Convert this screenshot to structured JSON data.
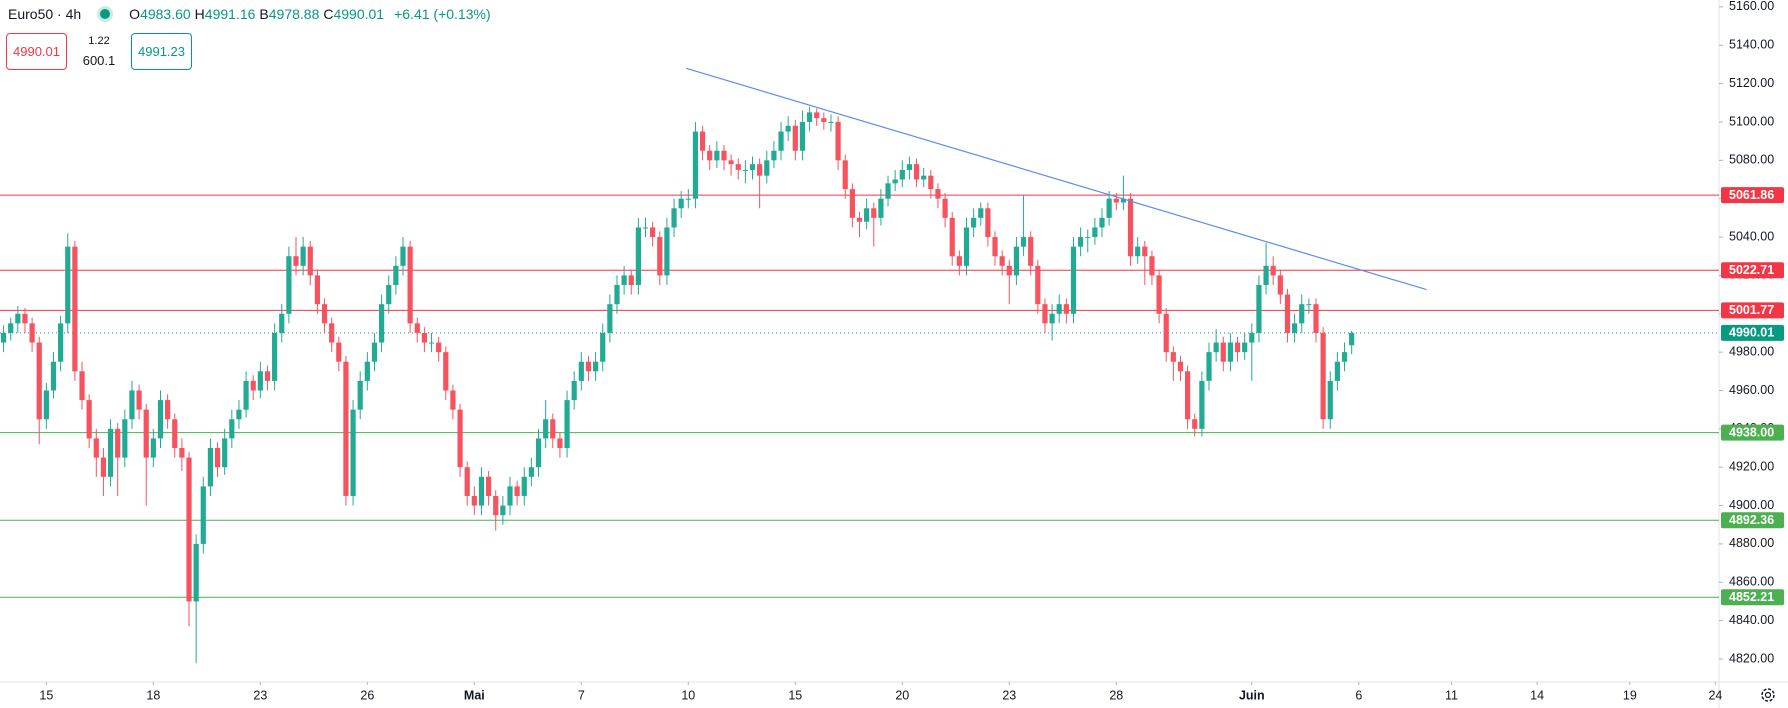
{
  "chart_data": {
    "type": "candlestick",
    "symbol": "Euro50 · 4h",
    "ohlc": [
      {
        "key": "O",
        "text": "4983.60"
      },
      {
        "key": "H",
        "text": "4991.16"
      },
      {
        "key": "B",
        "text": "4978.88"
      },
      {
        "key": "C",
        "text": "4990.01"
      }
    ],
    "change": "+6.41 (+0.13%)",
    "buttons": {
      "sell": "4990.01",
      "spread": "1.22",
      "volume": "600.1",
      "buy": "4991.23"
    },
    "up_color": "#22ab94",
    "down_color": "#f7525f",
    "candles": [
      [
        4985,
        4994,
        4980,
        4990
      ],
      [
        4990,
        4998,
        4986,
        4995
      ],
      [
        4995,
        5004,
        4990,
        5000
      ],
      [
        5000,
        5003,
        4990,
        4995
      ],
      [
        4995,
        4998,
        4980,
        4985
      ],
      [
        4985,
        4988,
        4932,
        4945
      ],
      [
        4945,
        4964,
        4940,
        4960
      ],
      [
        4960,
        4980,
        4956,
        4975
      ],
      [
        4975,
        4999,
        4970,
        4995
      ],
      [
        4995,
        5042,
        4990,
        5035
      ],
      [
        5035,
        5038,
        4965,
        4970
      ],
      [
        4970,
        4975,
        4950,
        4955
      ],
      [
        4955,
        4958,
        4930,
        4935
      ],
      [
        4935,
        4940,
        4915,
        4925
      ],
      [
        4925,
        4930,
        4905,
        4915
      ],
      [
        4915,
        4945,
        4910,
        4940
      ],
      [
        4940,
        4943,
        4905,
        4925
      ],
      [
        4925,
        4950,
        4920,
        4945
      ],
      [
        4945,
        4965,
        4940,
        4960
      ],
      [
        4960,
        4963,
        4945,
        4950
      ],
      [
        4950,
        4953,
        4900,
        4925
      ],
      [
        4925,
        4940,
        4920,
        4935
      ],
      [
        4935,
        4960,
        4930,
        4955
      ],
      [
        4955,
        4958,
        4940,
        4945
      ],
      [
        4945,
        4948,
        4925,
        4930
      ],
      [
        4930,
        4935,
        4918,
        4925
      ],
      [
        4925,
        4928,
        4837,
        4850
      ],
      [
        4850,
        4885,
        4818,
        4880
      ],
      [
        4880,
        4915,
        4875,
        4910
      ],
      [
        4910,
        4935,
        4905,
        4930
      ],
      [
        4930,
        4933,
        4915,
        4920
      ],
      [
        4920,
        4940,
        4916,
        4935
      ],
      [
        4935,
        4950,
        4930,
        4945
      ],
      [
        4945,
        4955,
        4940,
        4950
      ],
      [
        4950,
        4970,
        4946,
        4965
      ],
      [
        4965,
        4968,
        4955,
        4960
      ],
      [
        4960,
        4975,
        4956,
        4970
      ],
      [
        4970,
        4973,
        4960,
        4965
      ],
      [
        4965,
        4995,
        4960,
        4990
      ],
      [
        4990,
        5005,
        4985,
        5000
      ],
      [
        5000,
        5035,
        4995,
        5030
      ],
      [
        5030,
        5040,
        5020,
        5025
      ],
      [
        5025,
        5040,
        5020,
        5035
      ],
      [
        5035,
        5038,
        5015,
        5020
      ],
      [
        5020,
        5023,
        5000,
        5005
      ],
      [
        5005,
        5008,
        4990,
        4995
      ],
      [
        4995,
        4998,
        4980,
        4985
      ],
      [
        4985,
        4988,
        4970,
        4975
      ],
      [
        4975,
        4978,
        4900,
        4905
      ],
      [
        4905,
        4955,
        4900,
        4950
      ],
      [
        4950,
        4970,
        4945,
        4965
      ],
      [
        4965,
        4980,
        4960,
        4975
      ],
      [
        4975,
        4990,
        4970,
        4985
      ],
      [
        4985,
        5010,
        4980,
        5005
      ],
      [
        5005,
        5020,
        5000,
        5015
      ],
      [
        5015,
        5030,
        5010,
        5025
      ],
      [
        5025,
        5040,
        5020,
        5035
      ],
      [
        5035,
        5038,
        4990,
        4995
      ],
      [
        4995,
        4998,
        4985,
        4990
      ],
      [
        4990,
        4993,
        4980,
        4985
      ],
      [
        4985,
        4990,
        4980,
        4985
      ],
      [
        4985,
        4988,
        4975,
        4980
      ],
      [
        4980,
        4983,
        4955,
        4960
      ],
      [
        4960,
        4963,
        4945,
        4950
      ],
      [
        4950,
        4953,
        4915,
        4920
      ],
      [
        4920,
        4923,
        4900,
        4905
      ],
      [
        4905,
        4910,
        4895,
        4900
      ],
      [
        4900,
        4920,
        4895,
        4915
      ],
      [
        4915,
        4918,
        4900,
        4905
      ],
      [
        4905,
        4908,
        4887,
        4895
      ],
      [
        4895,
        4905,
        4890,
        4900
      ],
      [
        4900,
        4915,
        4895,
        4910
      ],
      [
        4910,
        4913,
        4900,
        4905
      ],
      [
        4905,
        4920,
        4900,
        4915
      ],
      [
        4915,
        4925,
        4910,
        4920
      ],
      [
        4920,
        4940,
        4915,
        4935
      ],
      [
        4935,
        4955,
        4930,
        4945
      ],
      [
        4945,
        4948,
        4930,
        4935
      ],
      [
        4935,
        4938,
        4925,
        4930
      ],
      [
        4930,
        4960,
        4925,
        4955
      ],
      [
        4955,
        4970,
        4950,
        4965
      ],
      [
        4965,
        4980,
        4960,
        4975
      ],
      [
        4975,
        4978,
        4965,
        4970
      ],
      [
        4970,
        4980,
        4965,
        4975
      ],
      [
        4975,
        4995,
        4970,
        4990
      ],
      [
        4990,
        5010,
        4985,
        5005
      ],
      [
        5005,
        5020,
        5000,
        5015
      ],
      [
        5015,
        5025,
        5010,
        5020
      ],
      [
        5020,
        5023,
        5010,
        5015
      ],
      [
        5015,
        5050,
        5010,
        5045
      ],
      [
        5045,
        5050,
        5040,
        5045
      ],
      [
        5045,
        5048,
        5035,
        5040
      ],
      [
        5040,
        5043,
        5015,
        5020
      ],
      [
        5020,
        5050,
        5015,
        5045
      ],
      [
        5045,
        5060,
        5040,
        5055
      ],
      [
        5055,
        5064,
        5050,
        5060
      ],
      [
        5060,
        5065,
        5055,
        5060
      ],
      [
        5060,
        5100,
        5055,
        5095
      ],
      [
        5095,
        5098,
        5080,
        5085
      ],
      [
        5085,
        5088,
        5075,
        5080
      ],
      [
        5080,
        5090,
        5076,
        5085
      ],
      [
        5085,
        5088,
        5075,
        5080
      ],
      [
        5080,
        5083,
        5072,
        5078
      ],
      [
        5078,
        5081,
        5070,
        5075
      ],
      [
        5075,
        5080,
        5068,
        5075
      ],
      [
        5075,
        5082,
        5070,
        5078
      ],
      [
        5078,
        5081,
        5055,
        5072
      ],
      [
        5072,
        5085,
        5068,
        5080
      ],
      [
        5080,
        5090,
        5076,
        5085
      ],
      [
        5085,
        5100,
        5080,
        5095
      ],
      [
        5095,
        5103,
        5090,
        5098
      ],
      [
        5098,
        5101,
        5080,
        5085
      ],
      [
        5085,
        5106,
        5080,
        5100
      ],
      [
        5100,
        5108,
        5095,
        5105
      ],
      [
        5105,
        5107,
        5098,
        5102
      ],
      [
        5102,
        5105,
        5096,
        5100
      ],
      [
        5100,
        5104,
        5095,
        5100
      ],
      [
        5100,
        5103,
        5075,
        5080
      ],
      [
        5080,
        5083,
        5060,
        5065
      ],
      [
        5065,
        5068,
        5045,
        5050
      ],
      [
        5050,
        5053,
        5040,
        5048
      ],
      [
        5048,
        5060,
        5044,
        5055
      ],
      [
        5055,
        5058,
        5035,
        5050
      ],
      [
        5050,
        5065,
        5046,
        5060
      ],
      [
        5060,
        5072,
        5056,
        5068
      ],
      [
        5068,
        5075,
        5064,
        5070
      ],
      [
        5070,
        5080,
        5066,
        5075
      ],
      [
        5075,
        5082,
        5070,
        5078
      ],
      [
        5078,
        5081,
        5066,
        5070
      ],
      [
        5070,
        5076,
        5066,
        5072
      ],
      [
        5072,
        5075,
        5060,
        5065
      ],
      [
        5065,
        5068,
        5055,
        5060
      ],
      [
        5060,
        5063,
        5045,
        5050
      ],
      [
        5050,
        5053,
        5025,
        5030
      ],
      [
        5030,
        5033,
        5020,
        5025
      ],
      [
        5025,
        5050,
        5020,
        5045
      ],
      [
        5045,
        5055,
        5040,
        5050
      ],
      [
        5050,
        5058,
        5046,
        5055
      ],
      [
        5055,
        5058,
        5035,
        5040
      ],
      [
        5040,
        5043,
        5025,
        5030
      ],
      [
        5030,
        5033,
        5020,
        5025
      ],
      [
        5025,
        5028,
        5005,
        5020
      ],
      [
        5020,
        5040,
        5015,
        5035
      ],
      [
        5035,
        5062,
        5030,
        5040
      ],
      [
        5040,
        5043,
        5020,
        5025
      ],
      [
        5025,
        5028,
        5000,
        5005
      ],
      [
        5005,
        5008,
        4990,
        4995
      ],
      [
        4995,
        5005,
        4986,
        5000
      ],
      [
        5000,
        5010,
        4995,
        5005
      ],
      [
        5005,
        5008,
        4995,
        5000
      ],
      [
        5000,
        5040,
        4995,
        5035
      ],
      [
        5035,
        5045,
        5030,
        5040
      ],
      [
        5040,
        5044,
        5032,
        5040
      ],
      [
        5040,
        5050,
        5036,
        5045
      ],
      [
        5045,
        5055,
        5040,
        5050
      ],
      [
        5050,
        5064,
        5046,
        5060
      ],
      [
        5060,
        5063,
        5054,
        5058
      ],
      [
        5058,
        5072,
        5054,
        5060
      ],
      [
        5060,
        5063,
        5025,
        5030
      ],
      [
        5030,
        5040,
        5026,
        5035
      ],
      [
        5035,
        5038,
        5015,
        5030
      ],
      [
        5030,
        5033,
        5015,
        5020
      ],
      [
        5020,
        5023,
        4995,
        5000
      ],
      [
        5000,
        5003,
        4975,
        4980
      ],
      [
        4980,
        4983,
        4965,
        4975
      ],
      [
        4975,
        4978,
        4965,
        4970
      ],
      [
        4970,
        4973,
        4940,
        4945
      ],
      [
        4945,
        4948,
        4936,
        4940
      ],
      [
        4940,
        4970,
        4936,
        4965
      ],
      [
        4965,
        4985,
        4960,
        4980
      ],
      [
        4980,
        4992,
        4975,
        4985
      ],
      [
        4985,
        4988,
        4970,
        4975
      ],
      [
        4975,
        4990,
        4970,
        4985
      ],
      [
        4985,
        4988,
        4975,
        4980
      ],
      [
        4980,
        4990,
        4976,
        4985
      ],
      [
        4985,
        4995,
        4965,
        4990
      ],
      [
        4990,
        5020,
        4985,
        5015
      ],
      [
        5015,
        5037,
        5010,
        5025
      ],
      [
        5025,
        5030,
        5015,
        5020
      ],
      [
        5020,
        5023,
        5005,
        5010
      ],
      [
        5010,
        5013,
        4985,
        4990
      ],
      [
        4990,
        5000,
        4985,
        4995
      ],
      [
        4995,
        5010,
        4990,
        5005
      ],
      [
        5005,
        5008,
        5000,
        5005
      ],
      [
        5005,
        5008,
        4985,
        4990
      ],
      [
        4990,
        4993,
        4940,
        4945
      ],
      [
        4945,
        4970,
        4940,
        4965
      ],
      [
        4965,
        4980,
        4960,
        4975
      ],
      [
        4975,
        4985,
        4970,
        4980
      ],
      [
        4983.6,
        4991.16,
        4978.88,
        4990.01
      ]
    ],
    "xlim": [
      -0.5,
      240.5
    ],
    "xticks": [
      {
        "value": 6,
        "label": "15"
      },
      {
        "value": 21,
        "label": "18"
      },
      {
        "value": 36,
        "label": "23"
      },
      {
        "value": 51,
        "label": "26"
      },
      {
        "value": 66,
        "label": "Mai"
      },
      {
        "value": 81,
        "label": "7"
      },
      {
        "value": 96,
        "label": "10"
      },
      {
        "value": 111,
        "label": "15"
      },
      {
        "value": 126,
        "label": "20"
      },
      {
        "value": 141,
        "label": "23"
      },
      {
        "value": 156,
        "label": "28"
      },
      {
        "value": 175,
        "label": "Juin"
      },
      {
        "value": 190,
        "label": "6"
      },
      {
        "value": 203,
        "label": "11"
      },
      {
        "value": 215,
        "label": "14"
      },
      {
        "value": 228,
        "label": "19"
      },
      {
        "value": 240,
        "label": "24"
      }
    ],
    "ylim": [
      4808,
      5163.6
    ],
    "yticks": [
      {
        "value": 4820,
        "label": "4820.00"
      },
      {
        "value": 4840,
        "label": "4840.00"
      },
      {
        "value": 4860,
        "label": "4860.00"
      },
      {
        "value": 4880,
        "label": "4880.00"
      },
      {
        "value": 4900,
        "label": "4900.00"
      },
      {
        "value": 4920,
        "label": "4920.00"
      },
      {
        "value": 4940,
        "label": "4940.00"
      },
      {
        "value": 4960,
        "label": "4960.00"
      },
      {
        "value": 4980,
        "label": "4980.00"
      },
      {
        "value": 5000,
        "label": "5000.00"
      },
      {
        "value": 5020,
        "label": "5020.00"
      },
      {
        "value": 5040,
        "label": "5040.00"
      },
      {
        "value": 5060,
        "label": "5060.00"
      },
      {
        "value": 5080,
        "label": "5080.00"
      },
      {
        "value": 5100,
        "label": "5100.00"
      },
      {
        "value": 5120,
        "label": "5120.00"
      },
      {
        "value": 5140,
        "label": "5140.00"
      },
      {
        "value": 5160,
        "label": "5160.00"
      }
    ],
    "levels": [
      {
        "value": 5061.86,
        "label": "5061.86",
        "color": "#f23645"
      },
      {
        "value": 5022.71,
        "label": "5022.71",
        "color": "#f23645"
      },
      {
        "value": 5001.77,
        "label": "5001.77",
        "color": "#f23645"
      },
      {
        "value": 4938,
        "label": "4938.00",
        "color": "#4caf50"
      },
      {
        "value": 4892.36,
        "label": "4892.36",
        "color": "#4caf50"
      },
      {
        "value": 4852.21,
        "label": "4852.21",
        "color": "#4caf50"
      }
    ],
    "last_price": {
      "value": 4990.01,
      "label": "4990.01",
      "color": "#089981"
    },
    "trendline": {
      "x": [
        95.7,
        199.5
      ],
      "y": [
        5128,
        5012.6
      ],
      "color": "#5b8def"
    }
  }
}
